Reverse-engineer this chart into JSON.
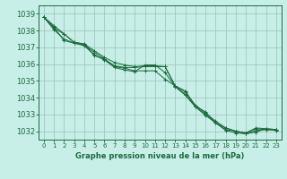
{
  "title": "Graphe pression niveau de la mer (hPa)",
  "background_color": "#c8eee8",
  "grid_color": "#a0c8c0",
  "line_color": "#1a6b3c",
  "xlim": [
    -0.5,
    23.5
  ],
  "ylim": [
    1031.5,
    1039.5
  ],
  "yticks": [
    1032,
    1033,
    1034,
    1035,
    1036,
    1037,
    1038,
    1039
  ],
  "xticks": [
    0,
    1,
    2,
    3,
    4,
    5,
    6,
    7,
    8,
    9,
    10,
    11,
    12,
    13,
    14,
    15,
    16,
    17,
    18,
    19,
    20,
    21,
    22,
    23
  ],
  "series": [
    [
      1038.8,
      1038.3,
      1037.8,
      1037.3,
      1037.2,
      1036.5,
      1036.3,
      1035.9,
      1035.8,
      1035.8,
      1035.85,
      1035.85,
      1035.85,
      1034.7,
      1034.4,
      1033.5,
      1033.15,
      1032.5,
      1032.2,
      1032.0,
      1031.9,
      1032.2,
      1032.15,
      1032.1
    ],
    [
      1038.8,
      1038.2,
      1037.4,
      1037.25,
      1037.15,
      1036.7,
      1036.3,
      1035.85,
      1035.75,
      1035.6,
      1035.6,
      1035.6,
      1035.1,
      1034.7,
      1034.2,
      1033.5,
      1033.0,
      1032.5,
      1032.1,
      1032.0,
      1031.85,
      1032.05,
      1032.1,
      1032.05
    ],
    [
      1038.8,
      1038.15,
      1037.8,
      1037.3,
      1037.2,
      1036.8,
      1036.4,
      1036.1,
      1035.95,
      1035.85,
      1035.9,
      1035.9,
      1035.85,
      1034.7,
      1034.35,
      1033.55,
      1033.1,
      1032.6,
      1032.2,
      1032.0,
      1031.9,
      1032.15,
      1032.1,
      1032.1
    ],
    [
      1038.8,
      1038.05,
      1037.5,
      1037.25,
      1037.1,
      1036.55,
      1036.25,
      1035.8,
      1035.65,
      1035.55,
      1035.95,
      1035.95,
      1035.5,
      1034.65,
      1034.15,
      1033.45,
      1032.95,
      1032.5,
      1032.05,
      1031.9,
      1031.85,
      1031.95,
      1032.15,
      1032.1
    ]
  ],
  "figsize": [
    3.2,
    2.0
  ],
  "dpi": 100
}
